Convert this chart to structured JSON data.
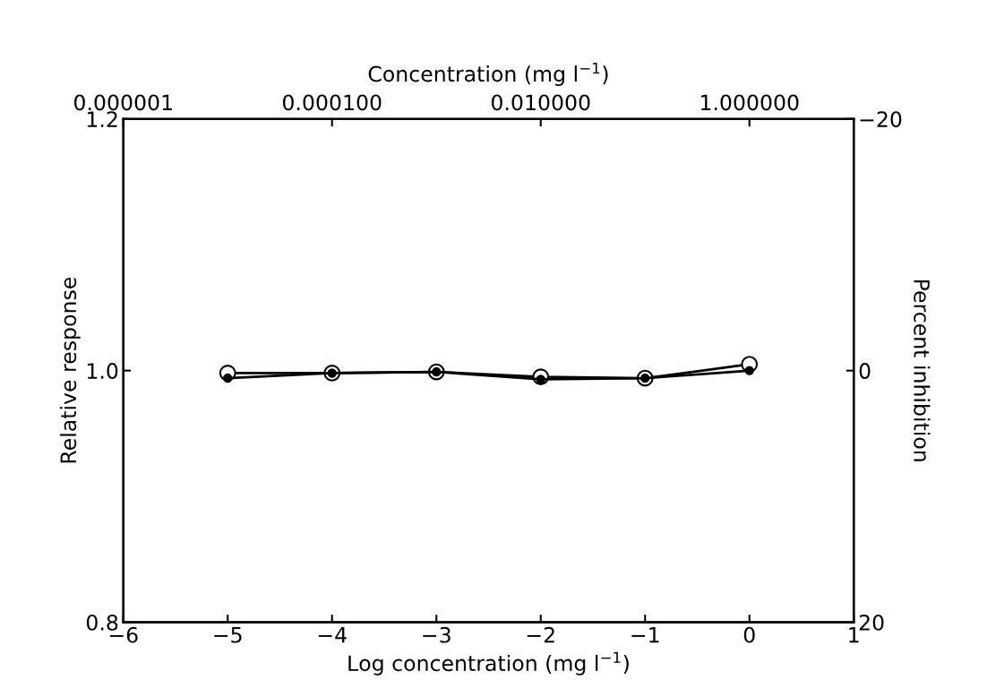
{
  "chart_data": {
    "type": "line",
    "xlabel": "Log concentration (mg l$^{−1}$)",
    "ylabel": "Relative response",
    "y2label": "Percent inhibition",
    "x2label": "Concentration (mg l$^{−1}$)",
    "x": [
      -5,
      -4,
      -3,
      -2,
      -1,
      0
    ],
    "series": [
      {
        "color": "#000000",
        "marker": "open circle",
        "values": [
          0.998,
          0.998,
          0.999,
          0.995,
          0.994,
          1.005
        ]
      },
      {
        "color": "#000000",
        "marker": "circle",
        "values": [
          0.994,
          0.998,
          0.999,
          0.993,
          0.994,
          1.0
        ]
      }
    ],
    "xlim": [
      -6,
      1
    ],
    "xticks": [
      -6,
      -5,
      -4,
      -3,
      -2,
      -1,
      0,
      1
    ],
    "ylim": [
      0.8,
      1.2
    ],
    "yticks": [
      {
        "value": 0.8,
        "label": "0.8"
      },
      {
        "value": 1.0,
        "label": "1.0"
      },
      {
        "value": 1.2,
        "label": "1.2"
      }
    ],
    "y2lim": [
      20,
      -20
    ],
    "y2ticks": [
      20,
      0,
      -20
    ],
    "x2lim": [
      1e-06,
      10
    ],
    "x2ticks": [
      {
        "value": 1e-06,
        "label": "0.000001"
      },
      {
        "value": 0.0001,
        "label": "0.000100"
      },
      {
        "value": 0.01,
        "label": "0.010000"
      },
      {
        "value": 1,
        "label": "1.000000"
      }
    ],
    "log": "x2",
    "grid": false,
    "legend": false,
    "line_style": "solid"
  }
}
